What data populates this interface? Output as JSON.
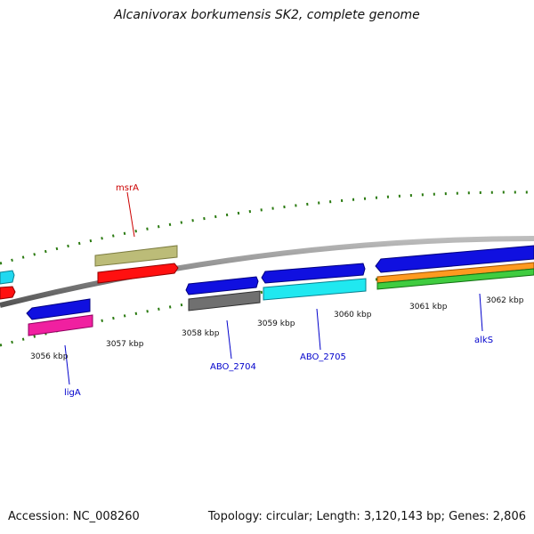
{
  "title": "Alcanivorax borkumensis SK2, complete genome",
  "accession": "Accession: NC_008260",
  "summary": "Topology: circular; Length: 3,120,143 bp; Genes: 2,806",
  "ticks": [
    "3056 kbp",
    "3057 kbp",
    "3058 kbp",
    "3059 kbp",
    "3060 kbp",
    "3061 kbp",
    "3062 kbp"
  ],
  "gene_labels": [
    {
      "name": "msrA",
      "color": "#cc0000"
    },
    {
      "name": "ligA",
      "color": "#0000cc"
    },
    {
      "name": "ABO_2704",
      "color": "#0000cc"
    },
    {
      "name": "ABO_2705",
      "color": "#0000cc"
    },
    {
      "name": "alkS",
      "color": "#0000cc"
    }
  ],
  "colors": {
    "backbone": "#8a8a8a",
    "tick_green": "#2a7a10",
    "cds_blue": "#1010e0",
    "cds_red": "#ff1010",
    "cds_cyan": "#20e8f0",
    "cds_magenta": "#f020a0",
    "cds_khaki": "#bcbc78",
    "cds_gray": "#707070",
    "cds_orange": "#ff9a20",
    "cds_green": "#40cc40"
  }
}
